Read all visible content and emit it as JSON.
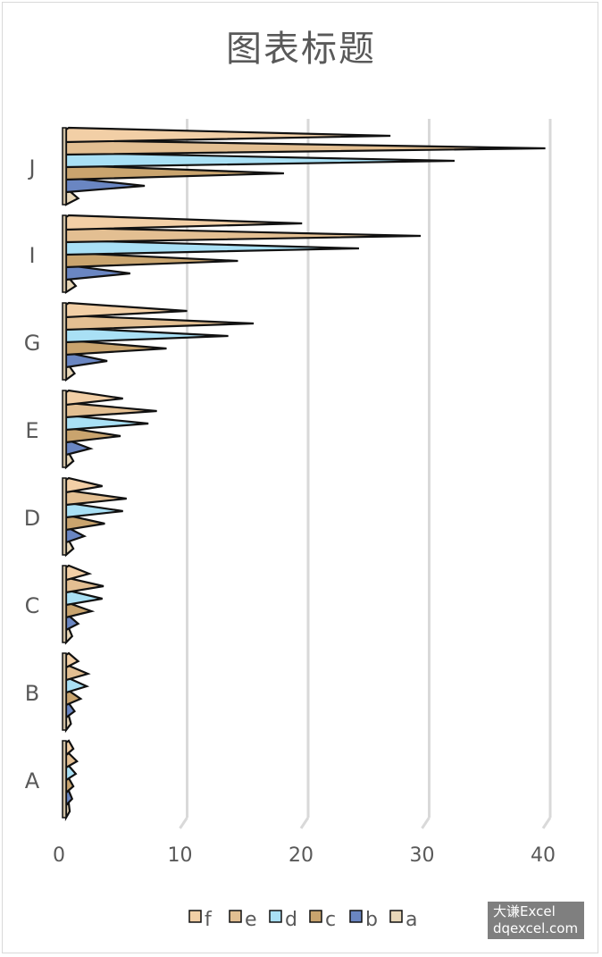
{
  "chart_data": {
    "type": "bar",
    "orientation": "horizontal",
    "title": "图表标题",
    "categories": [
      "A",
      "B",
      "C",
      "D",
      "E",
      "G",
      "I",
      "J"
    ],
    "series": [
      {
        "name": "a",
        "values": [
          0.3,
          0.4,
          0.5,
          0.6,
          0.6,
          0.7,
          0.8,
          1.0
        ],
        "color": "#e8d7b8"
      },
      {
        "name": "b",
        "values": [
          0.5,
          0.7,
          1.0,
          1.5,
          2.0,
          3.4,
          5.3,
          6.5
        ],
        "color": "#6a86c2"
      },
      {
        "name": "c",
        "values": [
          0.6,
          1.2,
          2.1,
          3.2,
          4.5,
          8.3,
          14.2,
          18.0
        ],
        "color": "#c9a46e"
      },
      {
        "name": "d",
        "values": [
          0.8,
          1.7,
          3.0,
          4.7,
          6.8,
          13.4,
          24.2,
          32.1
        ],
        "color": "#a9e0f5"
      },
      {
        "name": "e",
        "values": [
          0.9,
          1.8,
          3.1,
          5.0,
          7.5,
          15.5,
          29.3,
          39.6
        ],
        "color": "#e3bf92"
      },
      {
        "name": "f",
        "values": [
          0.6,
          1.0,
          1.9,
          3.0,
          4.7,
          10.0,
          19.5,
          26.8
        ],
        "color": "#f2cfa6"
      }
    ],
    "xlim": [
      0,
      40
    ],
    "xticks": [
      "0",
      "10",
      "20",
      "30",
      "40"
    ],
    "grid": true,
    "legend_position": "bottom"
  },
  "watermark": {
    "line1": "大谦Excel",
    "line2": "dqexcel.com"
  }
}
